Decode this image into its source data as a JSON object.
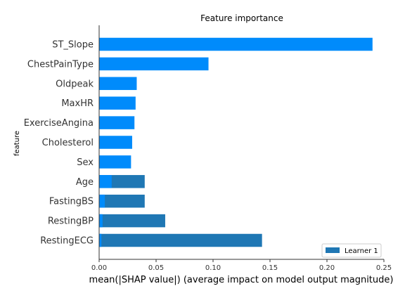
{
  "chart_data": {
    "type": "bar",
    "orientation": "horizontal",
    "title": "Feature importance",
    "xlabel": "mean(|SHAP value|) (average impact on model output magnitude)",
    "ylabel": "feature",
    "xlim": [
      0,
      0.25
    ],
    "xticks": [
      "0.00",
      "0.05",
      "0.10",
      "0.15",
      "0.20",
      "0.25"
    ],
    "xtick_values": [
      0,
      0.05,
      0.1,
      0.15,
      0.2,
      0.25
    ],
    "categories": [
      "ST_Slope",
      "ChestPainType",
      "Oldpeak",
      "MaxHR",
      "ExerciseAngina",
      "Cholesterol",
      "Sex",
      "Age",
      "FastingBS",
      "RestingBP",
      "RestingECG"
    ],
    "series": [
      {
        "name": "Learner 1",
        "color": "#1f77b4",
        "values": [
          null,
          null,
          null,
          null,
          null,
          null,
          null,
          0.04,
          0.04,
          0.058,
          0.143
        ]
      },
      {
        "color": "#008bfb",
        "values": [
          0.24,
          0.096,
          0.033,
          0.032,
          0.031,
          0.029,
          0.028,
          0.011,
          0.005,
          0.003,
          0.002
        ]
      }
    ],
    "legend": {
      "position": "bottom-right"
    },
    "grid": false
  }
}
